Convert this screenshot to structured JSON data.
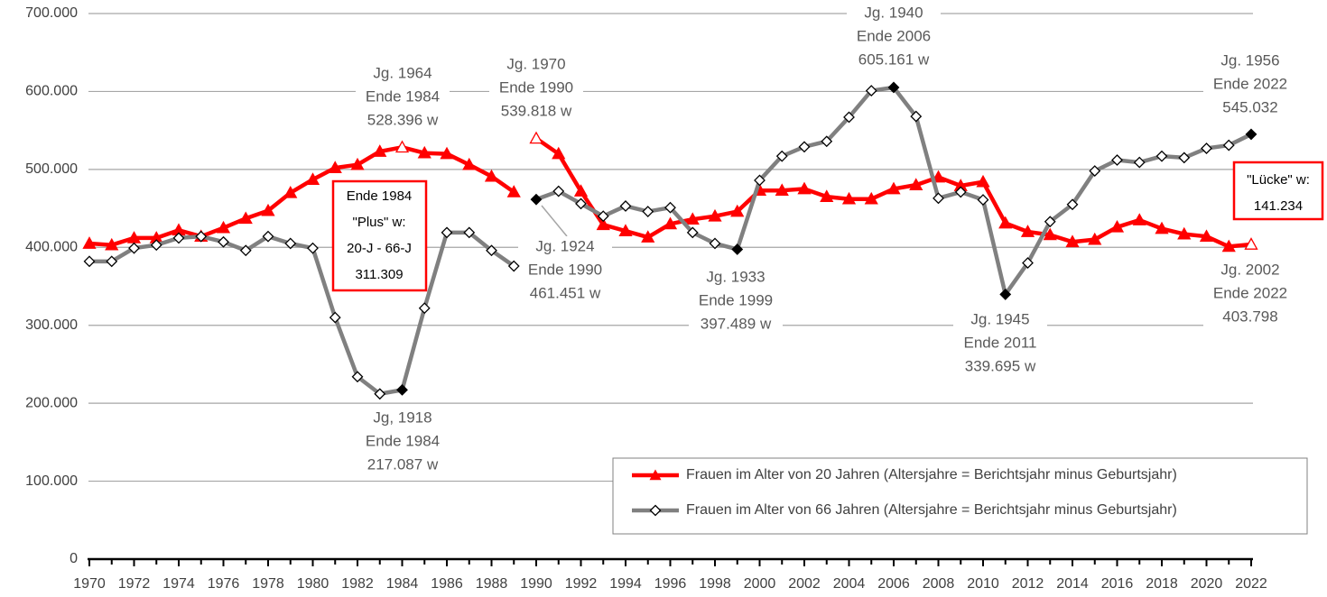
{
  "chart_data": {
    "type": "line",
    "x": [
      1970,
      1971,
      1972,
      1973,
      1974,
      1975,
      1976,
      1977,
      1978,
      1979,
      1980,
      1981,
      1982,
      1983,
      1984,
      1985,
      1986,
      1987,
      1988,
      1989,
      1990,
      1991,
      1992,
      1993,
      1994,
      1995,
      1996,
      1997,
      1998,
      1999,
      2000,
      2001,
      2002,
      2003,
      2004,
      2005,
      2006,
      2007,
      2008,
      2009,
      2010,
      2011,
      2012,
      2013,
      2014,
      2015,
      2016,
      2017,
      2018,
      2019,
      2020,
      2021,
      2022
    ],
    "breaks": [
      1990
    ],
    "series": [
      {
        "name": "Frauen im Alter von 20 Jahren (Altersjahre = Berichtsjahr minus Geburtsjahr)",
        "color": "#ff0000",
        "marker": "triangle",
        "highlights": [
          1984,
          1990,
          2022
        ],
        "values": [
          405000,
          403000,
          412000,
          412000,
          422000,
          414000,
          425000,
          437000,
          447000,
          470000,
          487000,
          502000,
          506000,
          523000,
          528396,
          521000,
          520000,
          506000,
          491000,
          471000,
          539818,
          520000,
          472000,
          429000,
          421000,
          413000,
          430000,
          436000,
          440000,
          446000,
          473000,
          473000,
          475000,
          465000,
          462000,
          462000,
          475000,
          480000,
          490000,
          479000,
          484000,
          431000,
          420000,
          416000,
          407000,
          410000,
          426000,
          435000,
          424000,
          417000,
          414000,
          401000,
          403798
        ]
      },
      {
        "name": "Frauen im Alter von 66 Jahren (Altersjahre = Berichtsjahr minus Geburtsjahr)",
        "color": "#808080",
        "marker": "diamond",
        "highlights": [
          1984,
          1990,
          1999,
          2006,
          2011,
          2022
        ],
        "values": [
          382000,
          382000,
          399000,
          403000,
          412000,
          414000,
          407000,
          396000,
          414000,
          405000,
          399000,
          310000,
          234000,
          212000,
          217087,
          322000,
          419000,
          419000,
          396000,
          376000,
          461451,
          472000,
          456000,
          440000,
          453000,
          446000,
          451000,
          419000,
          405000,
          397489,
          486000,
          517000,
          529000,
          536000,
          567000,
          601000,
          605161,
          568000,
          463000,
          471000,
          461000,
          339695,
          380000,
          433000,
          455000,
          498000,
          512000,
          509000,
          517000,
          515000,
          527000,
          531000,
          545032
        ]
      }
    ],
    "xlim": [
      1970,
      2022
    ],
    "xticks": [
      1970,
      1972,
      1974,
      1976,
      1978,
      1980,
      1982,
      1984,
      1986,
      1988,
      1990,
      1992,
      1994,
      1996,
      1998,
      2000,
      2002,
      2004,
      2006,
      2008,
      2010,
      2012,
      2014,
      2016,
      2018,
      2020,
      2022
    ],
    "ylim": [
      0,
      700000
    ],
    "yticks": [
      0,
      {
        "value": 100000,
        "label": "100.000"
      },
      {
        "value": 200000,
        "label": "200.000"
      },
      {
        "value": 300000,
        "label": "300.000"
      },
      {
        "value": 400000,
        "label": "400.000"
      },
      {
        "value": 500000,
        "label": "500.000"
      },
      {
        "value": 600000,
        "label": "600.000"
      },
      {
        "value": 700000,
        "label": "700.000"
      }
    ],
    "grid": true,
    "legend": "bottom-right",
    "annotations": [
      {
        "lines": [
          "Jg. 1964",
          "Ende 1984",
          "528.396 w"
        ]
      },
      {
        "lines": [
          "Jg. 1970",
          "Ende 1990",
          "539.818 w"
        ]
      },
      {
        "lines": [
          "Jg. 1940",
          "Ende 2006",
          "605.161 w"
        ]
      },
      {
        "lines": [
          "Jg. 1956",
          "Ende 2022",
          "545.032"
        ]
      },
      {
        "lines": [
          "Jg. 1924",
          "Ende 1990",
          "461.451 w"
        ]
      },
      {
        "lines": [
          "Jg. 1933",
          "Ende 1999",
          "397.489 w"
        ]
      },
      {
        "lines": [
          "Jg, 1918",
          "Ende 1984",
          "217.087 w"
        ]
      },
      {
        "lines": [
          "Jg. 1945",
          "Ende 2011",
          "339.695 w"
        ]
      },
      {
        "lines": [
          "Jg. 2002",
          "Ende 2022",
          "403.798"
        ]
      },
      {
        "lines": [
          "Ende 1984",
          "\"Plus\" w:",
          "20-J - 66-J",
          "311.309"
        ],
        "framed": true,
        "frame_color": "#ff0000"
      },
      {
        "lines": [
          "\"Lücke\" w:",
          "141.234"
        ],
        "framed": true,
        "frame_color": "#ff0000"
      }
    ]
  }
}
